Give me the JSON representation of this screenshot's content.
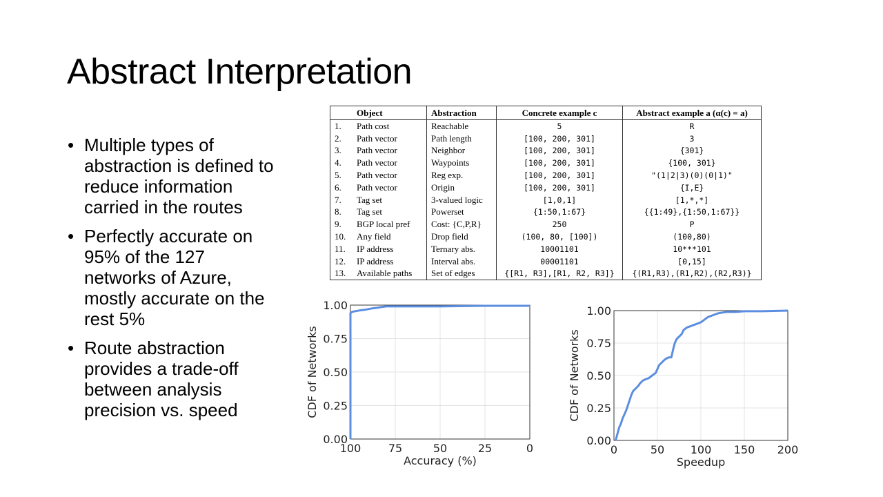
{
  "slide": {
    "title": "Abstract Interpretation",
    "bullets": [
      "Multiple types of abstraction is defined to reduce information carried in the routes",
      "Perfectly accurate on 95% of the 127 networks of Azure, mostly accurate on the rest 5%",
      "Route abstraction provides a trade-off between analysis precision vs. speed"
    ]
  },
  "table": {
    "headers": [
      "",
      "Object",
      "Abstraction",
      "Concrete example c",
      "Abstract example a (α(c) = a)"
    ],
    "rows": [
      [
        "1.",
        "Path cost",
        "Reachable",
        "5",
        "R"
      ],
      [
        "2.",
        "Path vector",
        "Path length",
        "[100, 200, 301]",
        "3"
      ],
      [
        "3.",
        "Path vector",
        "Neighbor",
        "[100, 200, 301]",
        "{301}"
      ],
      [
        "4.",
        "Path vector",
        "Waypoints",
        "[100, 200, 301]",
        "{100, 301}"
      ],
      [
        "5.",
        "Path vector",
        "Reg exp.",
        "[100, 200, 301]",
        "\"(1|2|3)(0)(0|1)\""
      ],
      [
        "6.",
        "Path vector",
        "Origin",
        "[100, 200, 301]",
        "{I,E}"
      ],
      [
        "7.",
        "Tag set",
        "3-valued logic",
        "[1,0,1]",
        "[1,*,*]"
      ],
      [
        "8.",
        "Tag set",
        "Powerset",
        "{1:50,1:67}",
        "{{1:49},{1:50,1:67}}"
      ],
      [
        "9.",
        "BGP local pref",
        "Cost: {C,P,R}",
        "250",
        "P"
      ],
      [
        "10.",
        "Any field",
        "Drop field",
        "(100, 80, [100])",
        "(100,80)"
      ],
      [
        "11.",
        "IP address",
        "Ternary abs.",
        "10001101",
        "10***101"
      ],
      [
        "12.",
        "IP address",
        "Interval abs.",
        "00001101",
        "[0,15]"
      ],
      [
        "13.",
        "Available paths",
        "Set of edges",
        "{[R1, R3],[R1, R2, R3]}",
        "{(R1,R3),(R1,R2),(R2,R3)}"
      ]
    ]
  },
  "chart_data": [
    {
      "type": "line",
      "xlabel": "Accuracy (%)",
      "ylabel": "CDF of Networks",
      "xlim": [
        100,
        0
      ],
      "ylim": [
        0,
        1
      ],
      "x_ticks": [
        "100",
        "75",
        "50",
        "25",
        "0"
      ],
      "y_ticks": [
        "0.00",
        "0.25",
        "0.50",
        "0.75",
        "1.00"
      ],
      "grid": true,
      "color": "#5b8de0",
      "x": [
        100,
        100,
        99,
        97,
        95,
        92,
        90,
        88,
        85,
        83,
        80,
        75,
        50,
        25,
        0
      ],
      "y": [
        0.0,
        0.94,
        0.95,
        0.955,
        0.96,
        0.965,
        0.97,
        0.975,
        0.98,
        0.985,
        0.99,
        0.99,
        0.99,
        0.995,
        0.995
      ]
    },
    {
      "type": "line",
      "xlabel": "Speedup",
      "ylabel": "CDF of Networks",
      "xlim": [
        0,
        200
      ],
      "ylim": [
        0,
        1
      ],
      "x_ticks": [
        "0",
        "50",
        "100",
        "150",
        "200"
      ],
      "y_ticks": [
        "0.00",
        "0.25",
        "0.50",
        "0.75",
        "1.00"
      ],
      "grid": true,
      "color": "#5b8de0",
      "x": [
        2,
        4,
        6,
        8,
        10,
        12,
        14,
        16,
        18,
        20,
        22,
        25,
        28,
        30,
        33,
        36,
        40,
        44,
        48,
        50,
        52,
        55,
        58,
        60,
        63,
        66,
        68,
        70,
        72,
        75,
        78,
        80,
        84,
        88,
        92,
        96,
        100,
        104,
        108,
        112,
        116,
        120,
        125,
        130,
        140,
        150,
        170,
        200
      ],
      "y": [
        0.0,
        0.05,
        0.1,
        0.13,
        0.17,
        0.2,
        0.23,
        0.27,
        0.31,
        0.35,
        0.38,
        0.4,
        0.42,
        0.44,
        0.46,
        0.47,
        0.48,
        0.5,
        0.52,
        0.55,
        0.58,
        0.6,
        0.62,
        0.63,
        0.64,
        0.64,
        0.7,
        0.75,
        0.78,
        0.8,
        0.82,
        0.85,
        0.87,
        0.88,
        0.89,
        0.9,
        0.91,
        0.93,
        0.95,
        0.96,
        0.97,
        0.98,
        0.985,
        0.99,
        0.99,
        0.995,
        0.995,
        1.0
      ]
    }
  ]
}
